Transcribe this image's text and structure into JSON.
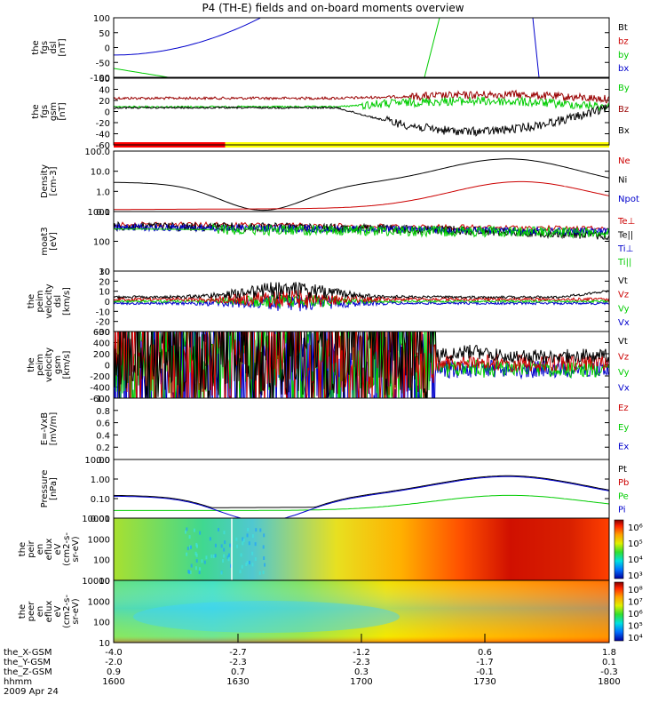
{
  "chart_data": {
    "type": "line",
    "title": "P4 (TH-E) fields and on-board moments overview",
    "date": "2009 Apr 24",
    "panels": [
      {
        "id": "fgs-dsl",
        "ylabel": [
          "the",
          "fgs",
          "dsl",
          "[nT]"
        ],
        "yticks": [
          100,
          50,
          0,
          -50,
          -100
        ],
        "ylim": [
          -100,
          100
        ],
        "legend": [
          {
            "name": "Bt",
            "color": "#000000"
          },
          {
            "name": "bz",
            "color": "#cc0000"
          },
          {
            "name": "by",
            "color": "#00cc00"
          },
          {
            "name": "bx",
            "color": "#0000cc"
          }
        ]
      },
      {
        "id": "fgs-gsm",
        "ylabel": [
          "the",
          "fgs",
          "gsm",
          "[nT]"
        ],
        "yticks": [
          60,
          40,
          20,
          0,
          -20,
          -40,
          -60
        ],
        "ylim": [
          -70,
          70
        ],
        "legend": [
          {
            "name": "By",
            "color": "#00cc00"
          },
          {
            "name": "Bz",
            "color": "#990000"
          },
          {
            "name": "Bx",
            "color": "#000000"
          }
        ]
      },
      {
        "id": "density",
        "ylabel": [
          "Density",
          "[cm-3]"
        ],
        "yticks": [
          "100.0",
          "10.0",
          "1.0",
          "0.1"
        ],
        "ylim": [
          0.1,
          100
        ],
        "log": true,
        "legend": [
          {
            "name": "Ne",
            "color": "#cc0000"
          },
          {
            "name": "Ni",
            "color": "#000000"
          },
          {
            "name": "Npot",
            "color": "#0000cc"
          }
        ]
      },
      {
        "id": "temperature",
        "ylabel": [
          "moat3",
          "[eV]"
        ],
        "yticks": [
          "1000",
          "100",
          "10"
        ],
        "ylim": [
          10,
          1000
        ],
        "log": true,
        "legend": [
          {
            "name": "Te⊥",
            "color": "#cc0000"
          },
          {
            "name": "Te||",
            "color": "#000000"
          },
          {
            "name": "Ti⊥",
            "color": "#0000cc"
          },
          {
            "name": "Ti||",
            "color": "#00cc00"
          }
        ]
      },
      {
        "id": "velocity-dsl",
        "ylabel": [
          "the",
          "peim",
          "velocity",
          "dsl",
          "[km/s]"
        ],
        "yticks": [
          30,
          20,
          10,
          0,
          -10,
          -20,
          -30
        ],
        "ylim": [
          -30,
          30
        ],
        "legend": [
          {
            "name": "Vt",
            "color": "#000000"
          },
          {
            "name": "Vz",
            "color": "#cc0000"
          },
          {
            "name": "Vy",
            "color": "#00cc00"
          },
          {
            "name": "Vx",
            "color": "#0000cc"
          }
        ]
      },
      {
        "id": "velocity-gsm",
        "ylabel": [
          "the",
          "peim",
          "velocity",
          "gsm",
          "[km/s]"
        ],
        "yticks": [
          600,
          400,
          200,
          0,
          -200,
          -400,
          -600
        ],
        "ylim": [
          -600,
          600
        ],
        "legend": [
          {
            "name": "Vt",
            "color": "#000000"
          },
          {
            "name": "Vz",
            "color": "#cc0000"
          },
          {
            "name": "Vy",
            "color": "#00cc00"
          },
          {
            "name": "Vx",
            "color": "#0000cc"
          }
        ]
      },
      {
        "id": "efield",
        "ylabel": [
          "E=-VxB",
          "[mV/m]"
        ],
        "yticks": [
          "1.0",
          "0.8",
          "0.6",
          "0.4",
          "0.2",
          "0.0"
        ],
        "ylim": [
          0,
          1
        ],
        "legend": [
          {
            "name": "Ez",
            "color": "#cc0000"
          },
          {
            "name": "Ey",
            "color": "#00cc00"
          },
          {
            "name": "Ex",
            "color": "#0000cc"
          }
        ]
      },
      {
        "id": "pressure",
        "ylabel": [
          "Pressure",
          "[nPa]"
        ],
        "yticks": [
          "10.00",
          "1.00",
          "0.10",
          "0.01"
        ],
        "ylim": [
          0.005,
          15
        ],
        "log": true,
        "legend": [
          {
            "name": "Pt",
            "color": "#000000"
          },
          {
            "name": "Pb",
            "color": "#cc0000"
          },
          {
            "name": "Pe",
            "color": "#00cc00"
          },
          {
            "name": "Pi",
            "color": "#0000cc"
          }
        ]
      },
      {
        "id": "peir-spectrogram",
        "ylabel": [
          "the",
          "peir",
          "en",
          "eflux",
          "eV",
          "(cm2-s-",
          "sr-eV)"
        ],
        "yticks": [
          "10000",
          "1000",
          "100",
          "10"
        ],
        "colorbar": [
          "10⁶",
          "10⁵",
          "10⁴",
          "10³"
        ]
      },
      {
        "id": "peer-spectrogram",
        "ylabel": [
          "the",
          "peer",
          "en",
          "eflux",
          "eV",
          "(cm2-s-",
          "sr-eV)"
        ],
        "yticks": [
          "10000",
          "1000",
          "100",
          "10"
        ],
        "colorbar": [
          "10⁸",
          "10⁷",
          "10⁶",
          "10⁵",
          "10⁴"
        ]
      }
    ],
    "xaxis": {
      "rows": [
        {
          "label": "the_X-GSM",
          "values": [
            "-4.0",
            "-2.7",
            "-1.2",
            "0.6",
            "1.8"
          ]
        },
        {
          "label": "the_Y-GSM",
          "values": [
            "-2.0",
            "-2.3",
            "-2.3",
            "-1.7",
            "0.1"
          ]
        },
        {
          "label": "the_Z-GSM",
          "values": [
            "0.9",
            "0.7",
            "0.3",
            "-0.1",
            "-0.3"
          ]
        },
        {
          "label": "hhmm",
          "values": [
            "1600",
            "1630",
            "1700",
            "1730",
            "1800"
          ]
        }
      ]
    },
    "mode_bar": {
      "red_until_fraction": 0.225,
      "colors": [
        "#ff0000",
        "#ffff00"
      ]
    }
  }
}
